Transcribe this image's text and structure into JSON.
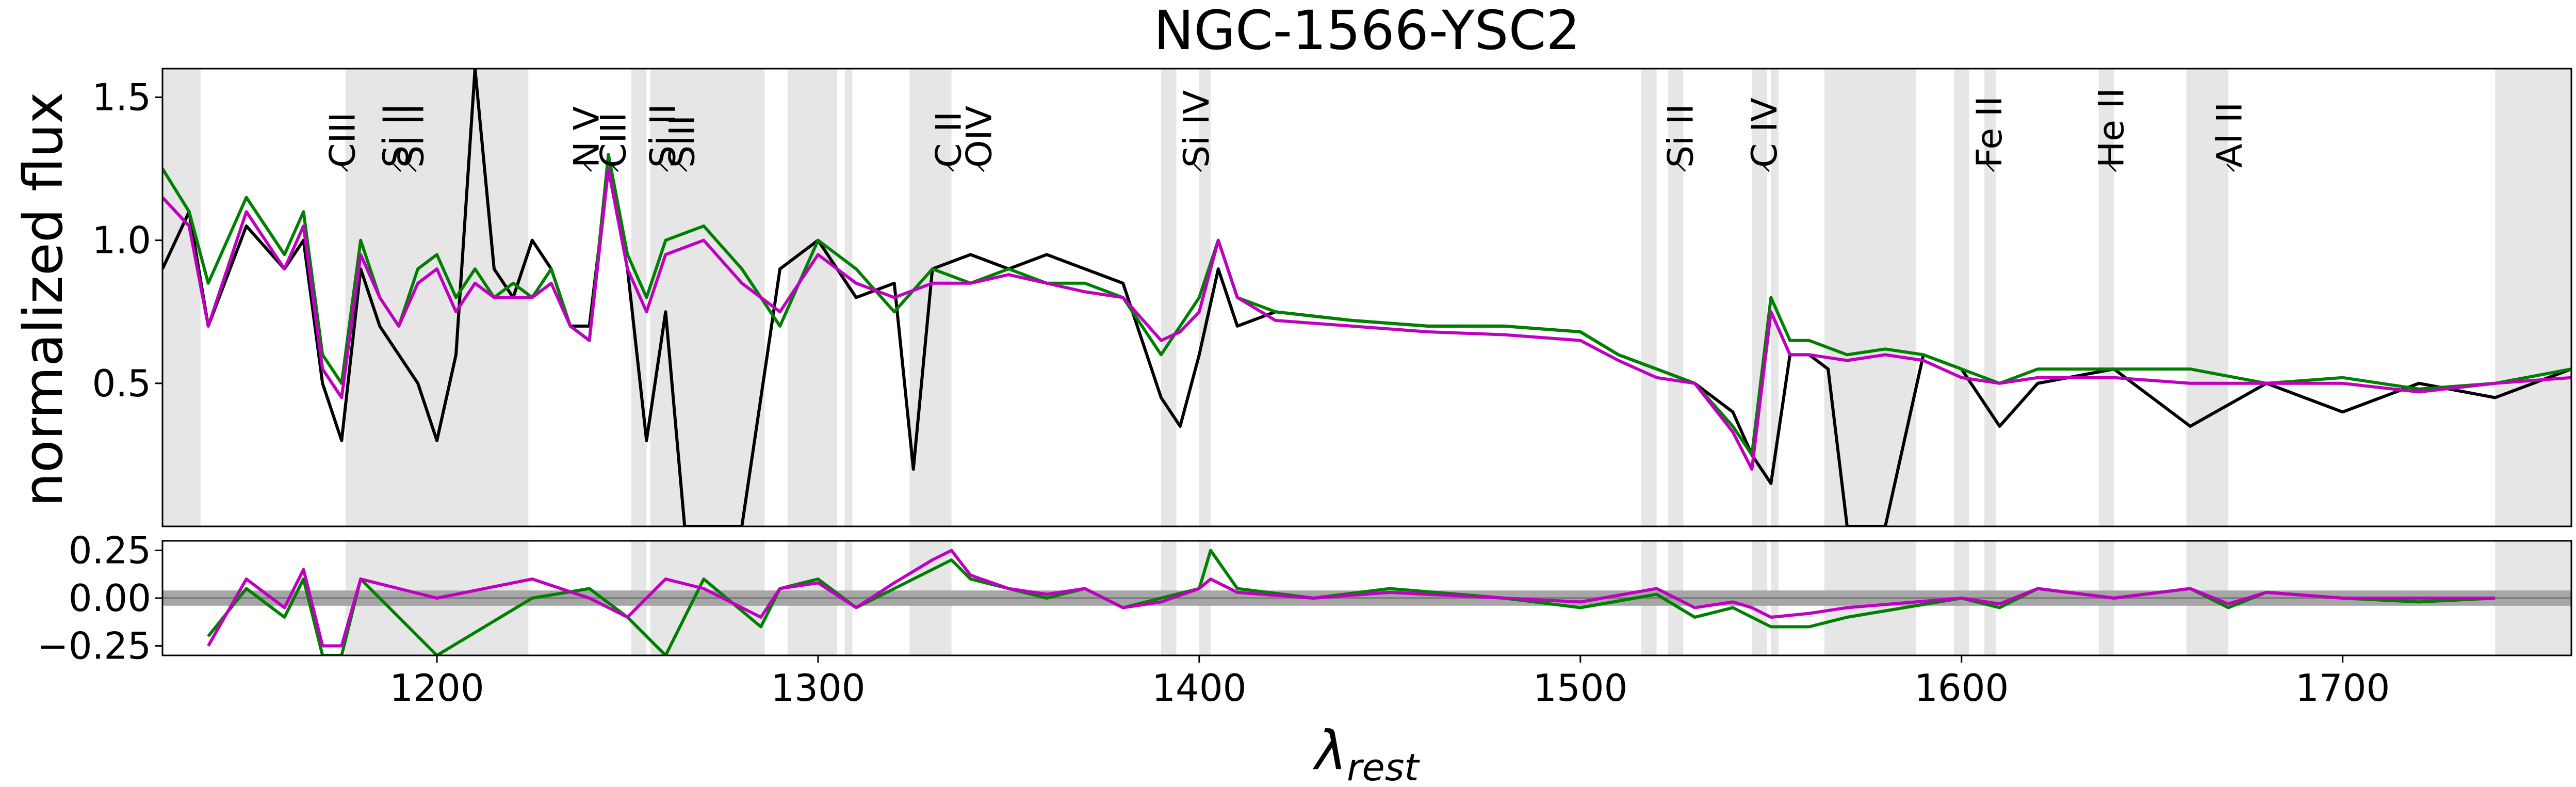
{
  "chart_data": [
    {
      "type": "line",
      "title": "NGC-1566-YSC2",
      "xlabel": "",
      "ylabel": "normalized flux",
      "xlim": [
        1128,
        1760
      ],
      "ylim": [
        0.0,
        1.6
      ],
      "yticks": [
        0.5,
        1.0,
        1.5
      ],
      "ytick_labels": [
        "0.5",
        "1.0",
        "1.5"
      ],
      "grid": false,
      "masked_regions": [
        [
          1128,
          1138
        ],
        [
          1176,
          1190
        ],
        [
          1190,
          1224
        ],
        [
          1251,
          1255
        ],
        [
          1256,
          1286
        ],
        [
          1292,
          1305
        ],
        [
          1307,
          1309
        ],
        [
          1324,
          1335
        ],
        [
          1390,
          1394
        ],
        [
          1400,
          1403
        ],
        [
          1516,
          1520
        ],
        [
          1523,
          1527
        ],
        [
          1545,
          1549
        ],
        [
          1550,
          1552
        ],
        [
          1564,
          1588
        ],
        [
          1598,
          1602
        ],
        [
          1606,
          1609
        ],
        [
          1636,
          1640
        ],
        [
          1659,
          1670
        ],
        [
          1740,
          1760
        ]
      ],
      "line_labels": [
        {
          "label": "CIII",
          "x": 1176
        },
        {
          "label": "Si II",
          "x": 1190
        },
        {
          "label": "Si II",
          "x": 1194
        },
        {
          "label": "N V",
          "x": 1240
        },
        {
          "label": "CIII",
          "x": 1247
        },
        {
          "label": "Si II",
          "x": 1260
        },
        {
          "label": "SiII",
          "x": 1265
        },
        {
          "label": "C II",
          "x": 1335
        },
        {
          "label": "OIV",
          "x": 1343
        },
        {
          "label": "Si IV",
          "x": 1400
        },
        {
          "label": "Si II",
          "x": 1527
        },
        {
          "label": "C IV",
          "x": 1549
        },
        {
          "label": "Fe II",
          "x": 1608
        },
        {
          "label": "He II",
          "x": 1640
        },
        {
          "label": "Al II",
          "x": 1671
        }
      ],
      "series": [
        {
          "color": "#000000",
          "x": [
            1128,
            1135,
            1140,
            1150,
            1160,
            1165,
            1170,
            1175,
            1180,
            1185,
            1190,
            1195,
            1200,
            1205,
            1210,
            1215,
            1220,
            1225,
            1230,
            1235,
            1240,
            1245,
            1250,
            1255,
            1260,
            1265,
            1270,
            1280,
            1290,
            1300,
            1310,
            1320,
            1325,
            1330,
            1340,
            1350,
            1360,
            1370,
            1380,
            1390,
            1395,
            1400,
            1405,
            1410,
            1420,
            1440,
            1460,
            1480,
            1500,
            1510,
            1520,
            1530,
            1540,
            1545,
            1550,
            1555,
            1560,
            1565,
            1570,
            1580,
            1590,
            1600,
            1610,
            1620,
            1640,
            1660,
            1680,
            1700,
            1720,
            1740,
            1760
          ],
          "y": [
            0.9,
            1.1,
            0.7,
            1.05,
            0.9,
            1.0,
            0.5,
            0.3,
            0.9,
            0.7,
            0.6,
            0.5,
            0.3,
            0.6,
            1.6,
            0.9,
            0.8,
            1.0,
            0.9,
            0.7,
            0.7,
            1.25,
            0.9,
            0.3,
            0.75,
            0.0,
            0.0,
            0.0,
            0.9,
            1.0,
            0.8,
            0.85,
            0.2,
            0.9,
            0.95,
            0.9,
            0.95,
            0.9,
            0.85,
            0.45,
            0.35,
            0.6,
            0.9,
            0.7,
            0.75,
            0.72,
            0.7,
            0.7,
            0.68,
            0.6,
            0.55,
            0.5,
            0.4,
            0.25,
            0.15,
            0.6,
            0.6,
            0.55,
            0.0,
            0.0,
            0.6,
            0.55,
            0.35,
            0.5,
            0.55,
            0.35,
            0.5,
            0.4,
            0.5,
            0.45,
            0.55
          ]
        },
        {
          "color": "#008000",
          "x": [
            1128,
            1135,
            1140,
            1150,
            1160,
            1165,
            1170,
            1175,
            1180,
            1185,
            1190,
            1195,
            1200,
            1205,
            1210,
            1215,
            1220,
            1225,
            1230,
            1235,
            1240,
            1245,
            1250,
            1255,
            1260,
            1270,
            1280,
            1290,
            1300,
            1310,
            1320,
            1330,
            1340,
            1350,
            1360,
            1370,
            1380,
            1390,
            1395,
            1400,
            1405,
            1410,
            1420,
            1440,
            1460,
            1480,
            1500,
            1510,
            1520,
            1530,
            1540,
            1545,
            1550,
            1555,
            1560,
            1570,
            1580,
            1590,
            1600,
            1610,
            1620,
            1640,
            1660,
            1680,
            1700,
            1720,
            1740,
            1760
          ],
          "y": [
            1.25,
            1.1,
            0.85,
            1.15,
            0.95,
            1.1,
            0.6,
            0.5,
            1.0,
            0.8,
            0.7,
            0.9,
            0.95,
            0.8,
            0.9,
            0.8,
            0.85,
            0.8,
            0.9,
            0.7,
            0.65,
            1.3,
            0.95,
            0.8,
            1.0,
            1.05,
            0.9,
            0.7,
            1.0,
            0.9,
            0.75,
            0.9,
            0.85,
            0.9,
            0.85,
            0.85,
            0.8,
            0.6,
            0.7,
            0.8,
            1.0,
            0.8,
            0.75,
            0.72,
            0.7,
            0.7,
            0.68,
            0.6,
            0.55,
            0.5,
            0.35,
            0.25,
            0.8,
            0.65,
            0.65,
            0.6,
            0.62,
            0.6,
            0.55,
            0.5,
            0.55,
            0.55,
            0.55,
            0.5,
            0.52,
            0.48,
            0.5,
            0.55
          ]
        },
        {
          "color": "#c000c0",
          "x": [
            1128,
            1135,
            1140,
            1150,
            1160,
            1165,
            1170,
            1175,
            1180,
            1185,
            1190,
            1195,
            1200,
            1205,
            1210,
            1215,
            1220,
            1225,
            1230,
            1235,
            1240,
            1245,
            1250,
            1255,
            1260,
            1270,
            1280,
            1290,
            1300,
            1310,
            1320,
            1330,
            1340,
            1350,
            1360,
            1370,
            1380,
            1390,
            1395,
            1400,
            1405,
            1410,
            1420,
            1440,
            1460,
            1480,
            1500,
            1510,
            1520,
            1530,
            1540,
            1545,
            1550,
            1555,
            1560,
            1570,
            1580,
            1590,
            1600,
            1610,
            1620,
            1640,
            1660,
            1680,
            1700,
            1720,
            1740,
            1760
          ],
          "y": [
            1.15,
            1.05,
            0.7,
            1.1,
            0.9,
            1.05,
            0.55,
            0.45,
            0.95,
            0.8,
            0.7,
            0.85,
            0.9,
            0.75,
            0.85,
            0.8,
            0.8,
            0.8,
            0.85,
            0.7,
            0.65,
            1.25,
            0.9,
            0.75,
            0.95,
            1.0,
            0.85,
            0.75,
            0.95,
            0.85,
            0.8,
            0.85,
            0.85,
            0.88,
            0.85,
            0.82,
            0.8,
            0.65,
            0.68,
            0.75,
            1.0,
            0.8,
            0.72,
            0.7,
            0.68,
            0.67,
            0.65,
            0.58,
            0.52,
            0.5,
            0.33,
            0.2,
            0.75,
            0.6,
            0.6,
            0.58,
            0.6,
            0.58,
            0.52,
            0.5,
            0.52,
            0.52,
            0.5,
            0.5,
            0.5,
            0.47,
            0.5,
            0.52
          ]
        }
      ]
    },
    {
      "type": "line",
      "title": "",
      "xlabel": "λrest",
      "xlabel_main": "λ",
      "xlabel_sub": "rest",
      "ylabel": "",
      "xlim": [
        1128,
        1760
      ],
      "ylim": [
        -0.3,
        0.3
      ],
      "xticks": [
        1200,
        1300,
        1400,
        1500,
        1600,
        1700
      ],
      "xtick_labels": [
        "1200",
        "1300",
        "1400",
        "1500",
        "1600",
        "1700"
      ],
      "yticks": [
        0.25,
        0.0,
        -0.25
      ],
      "ytick_labels": [
        "0.25",
        "0.00",
        "−0.25"
      ],
      "grid": false,
      "masked_regions": [
        [
          1176,
          1190
        ],
        [
          1190,
          1224
        ],
        [
          1251,
          1255
        ],
        [
          1256,
          1286
        ],
        [
          1292,
          1305
        ],
        [
          1307,
          1309
        ],
        [
          1324,
          1335
        ],
        [
          1390,
          1394
        ],
        [
          1400,
          1403
        ],
        [
          1516,
          1520
        ],
        [
          1523,
          1527
        ],
        [
          1545,
          1549
        ],
        [
          1550,
          1552
        ],
        [
          1564,
          1588
        ],
        [
          1598,
          1602
        ],
        [
          1606,
          1609
        ],
        [
          1636,
          1640
        ],
        [
          1659,
          1670
        ],
        [
          1740,
          1760
        ]
      ],
      "uncertainty_band_halfwidth": 0.04,
      "series": [
        {
          "color": "#008000",
          "x": [
            1140,
            1150,
            1160,
            1165,
            1170,
            1175,
            1180,
            1200,
            1225,
            1240,
            1250,
            1260,
            1270,
            1285,
            1290,
            1300,
            1310,
            1320,
            1330,
            1335,
            1340,
            1350,
            1360,
            1370,
            1380,
            1390,
            1400,
            1403,
            1410,
            1430,
            1450,
            1480,
            1500,
            1520,
            1530,
            1540,
            1545,
            1550,
            1560,
            1570,
            1600,
            1610,
            1620,
            1640,
            1660,
            1670,
            1680,
            1700,
            1720,
            1740
          ],
          "y": [
            -0.2,
            0.05,
            -0.1,
            0.1,
            -0.3,
            -0.3,
            0.1,
            -0.3,
            0.0,
            0.05,
            -0.1,
            -0.3,
            0.1,
            -0.15,
            0.05,
            0.1,
            -0.05,
            0.05,
            0.15,
            0.2,
            0.1,
            0.05,
            0.0,
            0.05,
            -0.05,
            0.0,
            0.05,
            0.25,
            0.05,
            0.0,
            0.05,
            0.0,
            -0.05,
            0.02,
            -0.1,
            -0.05,
            -0.1,
            -0.15,
            -0.15,
            -0.1,
            0.0,
            -0.05,
            0.05,
            0.0,
            0.05,
            -0.05,
            0.03,
            0.0,
            -0.02,
            0.0
          ]
        },
        {
          "color": "#c000c0",
          "x": [
            1140,
            1150,
            1160,
            1165,
            1170,
            1175,
            1180,
            1200,
            1225,
            1240,
            1250,
            1260,
            1270,
            1285,
            1290,
            1300,
            1310,
            1320,
            1330,
            1335,
            1340,
            1350,
            1360,
            1370,
            1380,
            1390,
            1400,
            1403,
            1410,
            1430,
            1450,
            1480,
            1500,
            1520,
            1530,
            1540,
            1545,
            1550,
            1560,
            1570,
            1600,
            1610,
            1620,
            1640,
            1660,
            1670,
            1680,
            1700,
            1720,
            1740
          ],
          "y": [
            -0.25,
            0.1,
            -0.05,
            0.15,
            -0.25,
            -0.25,
            0.1,
            0.0,
            0.1,
            0.0,
            -0.1,
            0.1,
            0.05,
            -0.1,
            0.05,
            0.08,
            -0.05,
            0.08,
            0.2,
            0.25,
            0.12,
            0.05,
            0.02,
            0.05,
            -0.05,
            -0.02,
            0.05,
            0.1,
            0.03,
            0.0,
            0.03,
            0.0,
            -0.02,
            0.05,
            -0.05,
            -0.02,
            -0.05,
            -0.1,
            -0.08,
            -0.05,
            0.0,
            -0.03,
            0.05,
            0.0,
            0.05,
            -0.03,
            0.03,
            0.0,
            0.0,
            0.0
          ]
        }
      ]
    }
  ]
}
